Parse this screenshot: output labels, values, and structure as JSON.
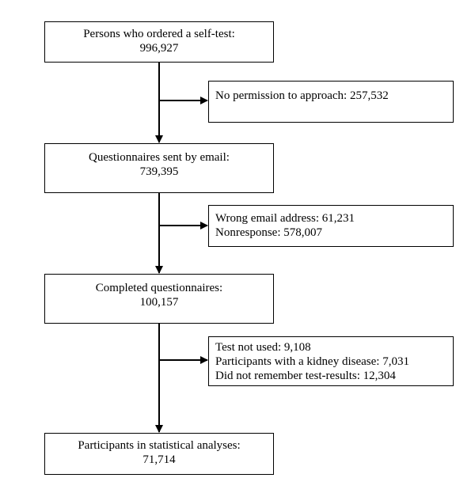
{
  "flowchart": {
    "main_boxes": [
      {
        "label": "Persons who ordered a self-test:",
        "value": "996,927"
      },
      {
        "label": "Questionnaires sent by email:",
        "value": "739,395"
      },
      {
        "label": "Completed questionnaires:",
        "value": "100,157"
      },
      {
        "label": "Participants in statistical analyses:",
        "value": "71,714"
      }
    ],
    "exclusion_boxes": [
      {
        "lines": [
          "No permission to approach: 257,532"
        ]
      },
      {
        "lines": [
          "Wrong email address: 61,231",
          "Nonresponse: 578,007"
        ]
      },
      {
        "lines": [
          "Test not used: 9,108",
          "Participants with a kidney disease: 7,031",
          "Did not remember test-results: 12,304"
        ]
      }
    ]
  }
}
